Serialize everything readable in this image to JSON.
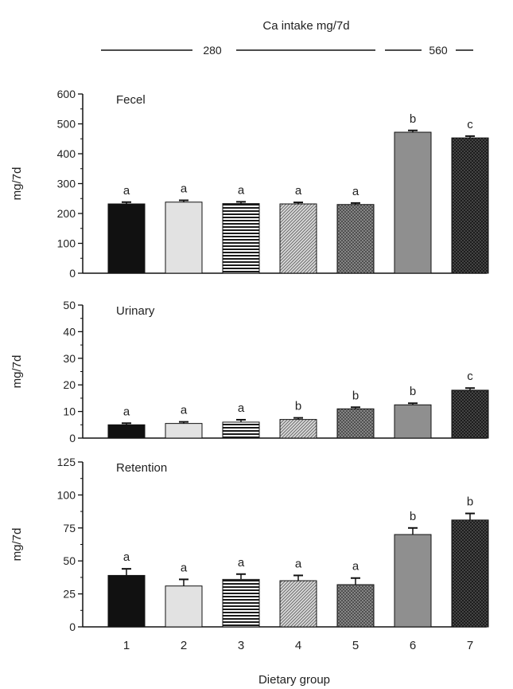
{
  "header": {
    "title": "Ca intake mg/7d",
    "level_1": "280",
    "level_2": "560"
  },
  "xlabel": "Dietary group",
  "colors": {
    "bar_1": "#111111",
    "bar_2": "#e2e2e2",
    "bar_3": "stripes-horizontal",
    "bar_4": "hatch-light",
    "bar_5": "crosshatch-medium",
    "bar_6": "#8f8f8f",
    "bar_7": "crosshatch-dark"
  },
  "chart_data": [
    {
      "type": "bar",
      "title": "Fecel",
      "ylabel": "mg/7d",
      "xlabel": "",
      "categories": [
        "1",
        "2",
        "3",
        "4",
        "5",
        "6",
        "7"
      ],
      "values": [
        232,
        238,
        233,
        232,
        230,
        472,
        453
      ],
      "errors": [
        6,
        6,
        6,
        5,
        5,
        6,
        6
      ],
      "letters": [
        "a",
        "a",
        "a",
        "a",
        "a",
        "b",
        "c"
      ],
      "ylim": [
        0,
        600
      ],
      "yticks": [
        0,
        100,
        200,
        300,
        400,
        500,
        600
      ],
      "grid": false
    },
    {
      "type": "bar",
      "title": "Urinary",
      "ylabel": "mg/7d",
      "xlabel": "",
      "categories": [
        "1",
        "2",
        "3",
        "4",
        "5",
        "6",
        "7"
      ],
      "values": [
        5,
        5.5,
        6,
        7,
        11,
        12.5,
        18
      ],
      "errors": [
        0.6,
        0.6,
        0.9,
        0.6,
        0.6,
        0.6,
        0.8
      ],
      "letters": [
        "a",
        "a",
        "a",
        "b",
        "b",
        "b",
        "c"
      ],
      "ylim": [
        0,
        50
      ],
      "yticks": [
        0,
        10,
        20,
        30,
        40,
        50
      ],
      "grid": false
    },
    {
      "type": "bar",
      "title": "Retention",
      "ylabel": "mg/7d",
      "xlabel": "Dietary group",
      "categories": [
        "1",
        "2",
        "3",
        "4",
        "5",
        "6",
        "7"
      ],
      "values": [
        39,
        31,
        36,
        35,
        32,
        70,
        81
      ],
      "errors": [
        5,
        5,
        4,
        4,
        5,
        5,
        5
      ],
      "letters": [
        "a",
        "a",
        "a",
        "a",
        "a",
        "b",
        "b"
      ],
      "ylim": [
        0,
        125
      ],
      "yticks": [
        0,
        25,
        50,
        75,
        100,
        125
      ],
      "grid": false
    }
  ]
}
